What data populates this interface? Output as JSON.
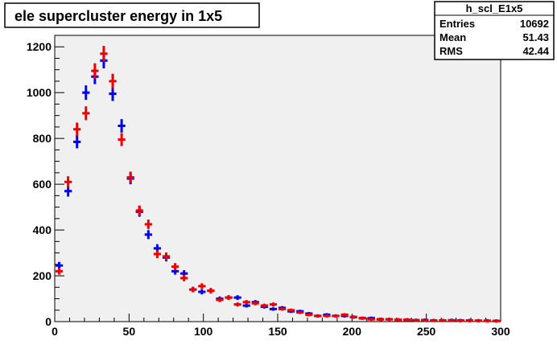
{
  "chart_data": {
    "type": "scatter",
    "title": "ele supercluster energy in 1x5",
    "xlabel": "",
    "ylabel": "",
    "xlim": [
      0,
      300
    ],
    "ylim": [
      0,
      1250
    ],
    "x_ticks": [
      0,
      50,
      100,
      150,
      200,
      250,
      300
    ],
    "y_ticks": [
      0,
      200,
      400,
      600,
      800,
      1000,
      1200
    ],
    "grid": false,
    "stats": {
      "name": "h_scl_E1x5",
      "rows": [
        {
          "label": "Entries",
          "value": "10692"
        },
        {
          "label": "Mean",
          "value": "51.43"
        },
        {
          "label": "RMS",
          "value": "42.44"
        }
      ]
    },
    "series": [
      {
        "color": "#0000ee",
        "x": [
          3,
          9,
          15,
          21,
          27,
          33,
          39,
          45,
          51,
          57,
          63,
          69,
          75,
          81,
          87,
          93,
          99,
          105,
          111,
          117,
          123,
          129,
          135,
          141,
          147,
          153,
          159,
          165,
          171,
          177,
          183,
          189,
          195,
          201,
          207,
          213,
          219,
          225,
          231,
          237,
          243,
          249,
          255,
          261,
          267,
          273,
          279,
          285,
          291,
          297
        ],
        "y": [
          245,
          570,
          785,
          1000,
          1070,
          1140,
          995,
          855,
          625,
          480,
          380,
          320,
          280,
          220,
          210,
          140,
          130,
          135,
          100,
          105,
          105,
          70,
          85,
          65,
          55,
          60,
          45,
          45,
          35,
          25,
          30,
          25,
          25,
          20,
          15,
          15,
          10,
          10,
          8,
          8,
          6,
          7,
          5,
          5,
          6,
          5,
          5,
          4,
          4,
          3
        ]
      },
      {
        "color": "#ee0000",
        "x": [
          3,
          9,
          15,
          21,
          27,
          33,
          39,
          45,
          51,
          57,
          63,
          69,
          75,
          81,
          87,
          93,
          99,
          105,
          111,
          117,
          123,
          129,
          135,
          141,
          147,
          153,
          159,
          165,
          171,
          177,
          183,
          189,
          195,
          201,
          207,
          213,
          219,
          225,
          231,
          237,
          243,
          249,
          255,
          261,
          267,
          273,
          279,
          285,
          291,
          297
        ],
        "y": [
          220,
          610,
          840,
          910,
          1095,
          1170,
          1050,
          795,
          630,
          485,
          425,
          295,
          285,
          240,
          190,
          140,
          155,
          135,
          95,
          105,
          75,
          85,
          80,
          70,
          75,
          55,
          50,
          40,
          30,
          25,
          25,
          25,
          30,
          20,
          15,
          10,
          10,
          10,
          8,
          8,
          6,
          6,
          5,
          5,
          5,
          4,
          4,
          4,
          3,
          3
        ]
      }
    ]
  }
}
